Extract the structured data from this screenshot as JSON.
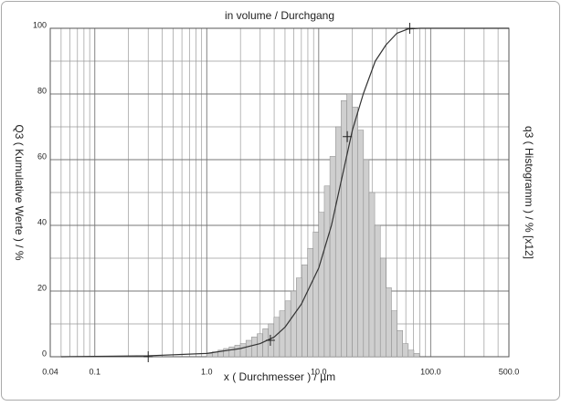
{
  "chart_data": {
    "type": "histogram",
    "title": "in volume / Durchgang",
    "xlabel": "x ( Durchmesser ) / µm",
    "ylabel": "Q3 ( Kumulative Werte ) / %",
    "y2label": "q3 ( Histogramm ) / % [x12]",
    "xscale": "log",
    "xlim": [
      0.04,
      500
    ],
    "ylim": [
      0,
      100
    ],
    "xticks": [
      0.04,
      0.1,
      {
        "value": 1,
        "label": "1.0"
      },
      {
        "value": 10,
        "label": "10.0"
      },
      {
        "value": 100,
        "label": "100.0"
      },
      {
        "value": 500,
        "label": "500.0"
      }
    ],
    "yticks": [
      0,
      20,
      40,
      60,
      80,
      100
    ],
    "minor_xticks": [
      0.05,
      0.06,
      0.07,
      0.08,
      0.09,
      0.2,
      0.3,
      0.4,
      0.5,
      0.6,
      0.7,
      0.8,
      0.9,
      2,
      3,
      4,
      5,
      6,
      7,
      8,
      9,
      20,
      30,
      40,
      50,
      60,
      70,
      80,
      90,
      200,
      300,
      400
    ],
    "minor_yticks": [
      10,
      30,
      50,
      70,
      90
    ],
    "grid": true,
    "histogram": {
      "color": "#cfcfcf",
      "bins": [
        1.0,
        1.122,
        1.259,
        1.413,
        1.585,
        1.778,
        1.995,
        2.239,
        2.512,
        2.818,
        3.162,
        3.548,
        3.981,
        4.467,
        5.012,
        5.623,
        6.31,
        7.079,
        7.943,
        8.913,
        10.0,
        11.22,
        12.59,
        14.13,
        15.85,
        17.78,
        19.95,
        22.39,
        25.12,
        28.18,
        31.62,
        35.48,
        39.81,
        44.67,
        50.12,
        56.23,
        63.1,
        70.79,
        79.43
      ],
      "values": [
        1,
        1.5,
        2,
        2.5,
        3,
        3.5,
        4,
        5,
        6,
        7,
        8.5,
        10,
        12,
        14,
        17,
        20,
        24,
        28,
        33,
        38,
        44,
        52,
        61,
        70,
        78,
        80,
        76,
        69,
        60,
        50,
        40,
        30,
        21,
        14,
        8,
        4,
        2,
        1
      ]
    },
    "cumulative": {
      "color": "#333333",
      "x": [
        0.05,
        0.3,
        1,
        2,
        3,
        4,
        5,
        7,
        10,
        13,
        16,
        20,
        25,
        32,
        40,
        50,
        63,
        80,
        500
      ],
      "y": [
        0,
        0.3,
        1,
        2.5,
        4,
        6,
        9,
        16,
        27,
        40,
        54,
        69,
        80,
        90,
        95,
        98.5,
        99.8,
        100,
        100
      ]
    },
    "markers": {
      "x": [
        0.3,
        3.7,
        18,
        65
      ],
      "y": [
        0,
        5,
        67,
        100
      ]
    }
  }
}
